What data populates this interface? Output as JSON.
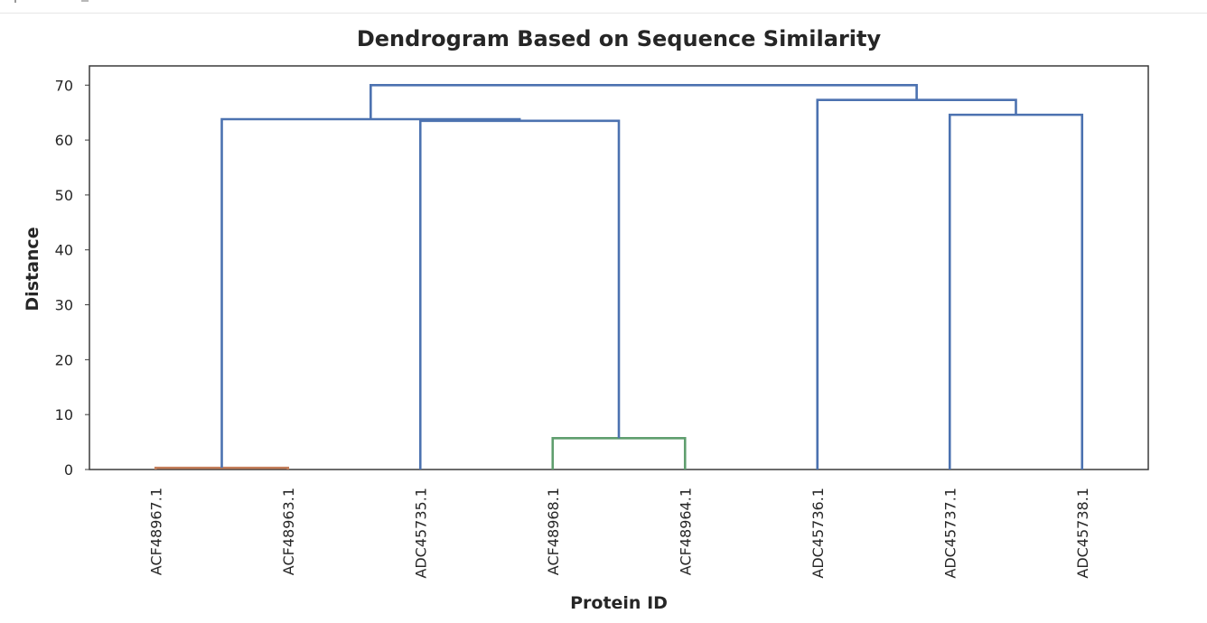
{
  "chart_data": {
    "type": "dendrogram",
    "title": "Dendrogram Based on Sequence Similarity",
    "xlabel": "Protein ID",
    "ylabel": "Distance",
    "ylim": [
      0,
      73.5
    ],
    "yticks": [
      0,
      10,
      20,
      30,
      40,
      50,
      60,
      70
    ],
    "leaves": [
      "ACF48967.1",
      "ACF48963.1",
      "ADC45735.1",
      "ACF48968.1",
      "ACF48964.1",
      "ADC45736.1",
      "ADC45737.1",
      "ADC45738.1"
    ],
    "merges": [
      {
        "left": "ACF48967.1",
        "right": "ACF48963.1",
        "height": 0.3,
        "color": "#c47e5a"
      },
      {
        "left": "ACF48968.1",
        "right": "ACF48964.1",
        "height": 5.7,
        "color": "#5f9e6e"
      },
      {
        "left": "ADC45735.1",
        "right": "ACF48968.1 + ACF48964.1",
        "height": 63.5,
        "color": "#4c72b0"
      },
      {
        "left": "ACF48967.1 + ACF48963.1",
        "right": "ADC45735.1 + ACF48968.1 + ACF48964.1",
        "height": 63.8,
        "color": "#4c72b0"
      },
      {
        "left": "ADC45737.1",
        "right": "ADC45738.1",
        "height": 64.6,
        "color": "#4c72b0"
      },
      {
        "left": "ADC45736.1",
        "right": "ADC45737.1 + ADC45738.1",
        "height": 67.3,
        "color": "#4c72b0"
      },
      {
        "left": "ACF48967.1 + ACF48963.1 + ADC45735.1 + ACF48968.1 + ACF48964.1",
        "right": "ADC45736.1 + ADC45737.1 + ADC45738.1",
        "height": 70.0,
        "color": "#4c72b0"
      }
    ],
    "grid": false,
    "legend": "none"
  }
}
